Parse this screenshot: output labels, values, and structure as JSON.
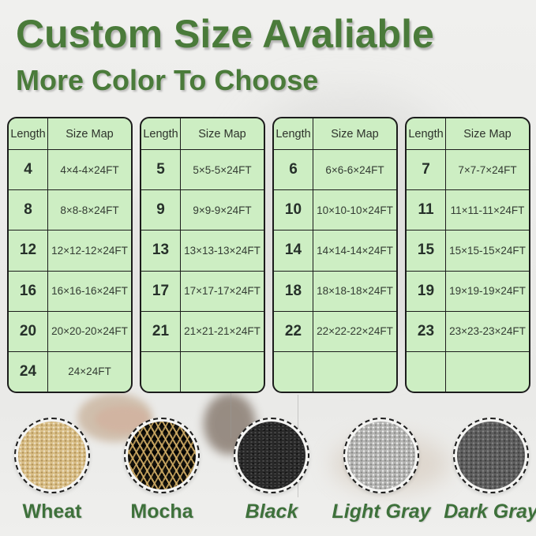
{
  "theme": {
    "title_green": "#4a7b3a",
    "label_green": "#3e713b",
    "table_green": "#cdeec3",
    "table_border": "#1c1c1c",
    "page_bg": "#eeeeec"
  },
  "header": {
    "title": "Custom Size Avaliable",
    "subtitle": "More Color To Choose"
  },
  "tables": [
    {
      "columns": [
        "Length",
        "Size Map"
      ],
      "rows": [
        [
          "4",
          "4×4-4×24FT"
        ],
        [
          "8",
          "8×8-8×24FT"
        ],
        [
          "12",
          "12×12-12×24FT"
        ],
        [
          "16",
          "16×16-16×24FT"
        ],
        [
          "20",
          "20×20-20×24FT"
        ],
        [
          "24",
          "24×24FT"
        ]
      ]
    },
    {
      "columns": [
        "Length",
        "Size Map"
      ],
      "rows": [
        [
          "5",
          "5×5-5×24FT"
        ],
        [
          "9",
          "9×9-9×24FT"
        ],
        [
          "13",
          "13×13-13×24FT"
        ],
        [
          "17",
          "17×17-17×24FT"
        ],
        [
          "21",
          "21×21-21×24FT"
        ],
        [
          "",
          ""
        ]
      ]
    },
    {
      "columns": [
        "Length",
        "Size Map"
      ],
      "rows": [
        [
          "6",
          "6×6-6×24FT"
        ],
        [
          "10",
          "10×10-10×24FT"
        ],
        [
          "14",
          "14×14-14×24FT"
        ],
        [
          "18",
          "18×18-18×24FT"
        ],
        [
          "22",
          "22×22-22×24FT"
        ],
        [
          "",
          ""
        ]
      ]
    },
    {
      "columns": [
        "Length",
        "Size Map"
      ],
      "rows": [
        [
          "7",
          "7×7-7×24FT"
        ],
        [
          "11",
          "11×11-11×24FT"
        ],
        [
          "15",
          "15×15-15×24FT"
        ],
        [
          "19",
          "19×19-19×24FT"
        ],
        [
          "23",
          "23×23-23×24FT"
        ],
        [
          "",
          ""
        ]
      ]
    }
  ],
  "swatches": [
    {
      "label": "Wheat",
      "base_color": "#d8bd85",
      "text_style": "upright"
    },
    {
      "label": "Mocha",
      "base_color": "#8a6d3b",
      "text_style": "upright"
    },
    {
      "label": "Black",
      "base_color": "#282828",
      "text_style": "italic"
    },
    {
      "label": "Light Gray",
      "base_color": "#b4b4b2",
      "text_style": "italic"
    },
    {
      "label": "Dark Gray",
      "base_color": "#5e5e5e",
      "text_style": "italic"
    }
  ]
}
